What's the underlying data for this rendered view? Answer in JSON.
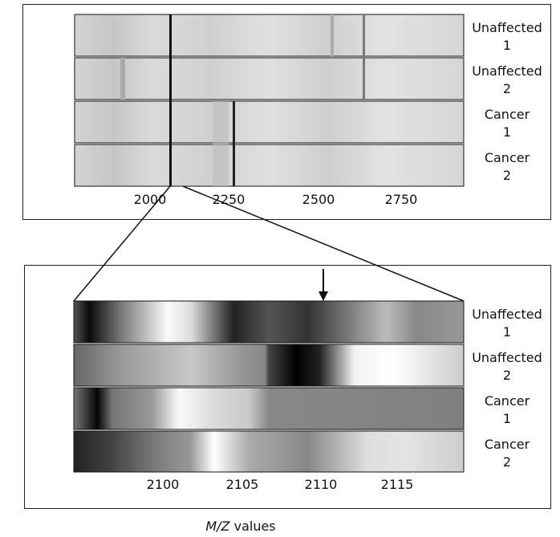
{
  "top_panel": {
    "rows": [
      {
        "name": "Unaffected",
        "number": "1"
      },
      {
        "name": "Unaffected",
        "number": "2"
      },
      {
        "name": "Cancer",
        "number": "1"
      },
      {
        "name": "Cancer",
        "number": "2"
      }
    ],
    "ticks": [
      "2000",
      "2250",
      "2500",
      "2750"
    ]
  },
  "bottom_panel": {
    "rows": [
      {
        "name": "Unaffected",
        "number": "1"
      },
      {
        "name": "Unaffected",
        "number": "2"
      },
      {
        "name": "Cancer",
        "number": "1"
      },
      {
        "name": "Cancer",
        "number": "2"
      }
    ],
    "ticks": [
      "2100",
      "2105",
      "2110",
      "2115"
    ]
  },
  "axis_label": {
    "variable": "M/Z",
    "unit": "values"
  }
}
